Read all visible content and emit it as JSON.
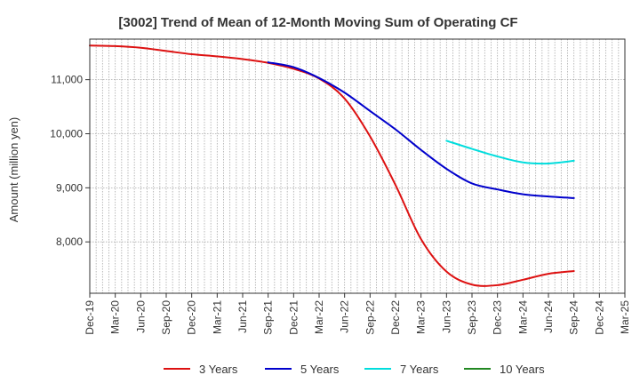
{
  "chart_data": {
    "type": "line",
    "title": "[3002]  Trend of Mean of 12-Month Moving Sum of Operating CF",
    "xlabel": "",
    "ylabel": "Amount (million yen)",
    "x": [
      "Dec-19",
      "Mar-20",
      "Jun-20",
      "Sep-20",
      "Dec-20",
      "Mar-21",
      "Jun-21",
      "Sep-21",
      "Dec-21",
      "Mar-22",
      "Jun-22",
      "Sep-22",
      "Dec-22",
      "Mar-23",
      "Jun-23",
      "Sep-23",
      "Dec-23",
      "Mar-24",
      "Jun-24",
      "Sep-24",
      "Dec-24",
      "Mar-25"
    ],
    "y_ticks": [
      8000,
      9000,
      10000,
      11000
    ],
    "y_tick_labels": [
      "8,000",
      "9,000",
      "10,000",
      "11,000"
    ],
    "ylim": [
      7050,
      11750
    ],
    "grid": true,
    "legend_position": "bottom",
    "series": [
      {
        "name": "3 Years",
        "color": "#dd1111",
        "values": [
          11630,
          11620,
          11590,
          11530,
          11470,
          11430,
          11380,
          11310,
          11200,
          11020,
          10650,
          9950,
          9050,
          8050,
          7450,
          7210,
          7200,
          7300,
          7410,
          7460,
          null,
          null
        ]
      },
      {
        "name": "5 Years",
        "color": "#0000cc",
        "values": [
          null,
          null,
          null,
          null,
          null,
          null,
          null,
          11320,
          11230,
          11030,
          10760,
          10420,
          10080,
          9700,
          9350,
          9080,
          8970,
          8880,
          8840,
          8810,
          null,
          null
        ]
      },
      {
        "name": "7 Years",
        "color": "#00dddd",
        "values": [
          null,
          null,
          null,
          null,
          null,
          null,
          null,
          null,
          null,
          null,
          null,
          null,
          null,
          null,
          9870,
          9720,
          9580,
          9470,
          9450,
          9500,
          null,
          null
        ]
      },
      {
        "name": "10 Years",
        "color": "#228822",
        "values": [
          null,
          null,
          null,
          null,
          null,
          null,
          null,
          null,
          null,
          null,
          null,
          null,
          null,
          null,
          null,
          null,
          null,
          null,
          null,
          null,
          null,
          null
        ]
      }
    ]
  }
}
